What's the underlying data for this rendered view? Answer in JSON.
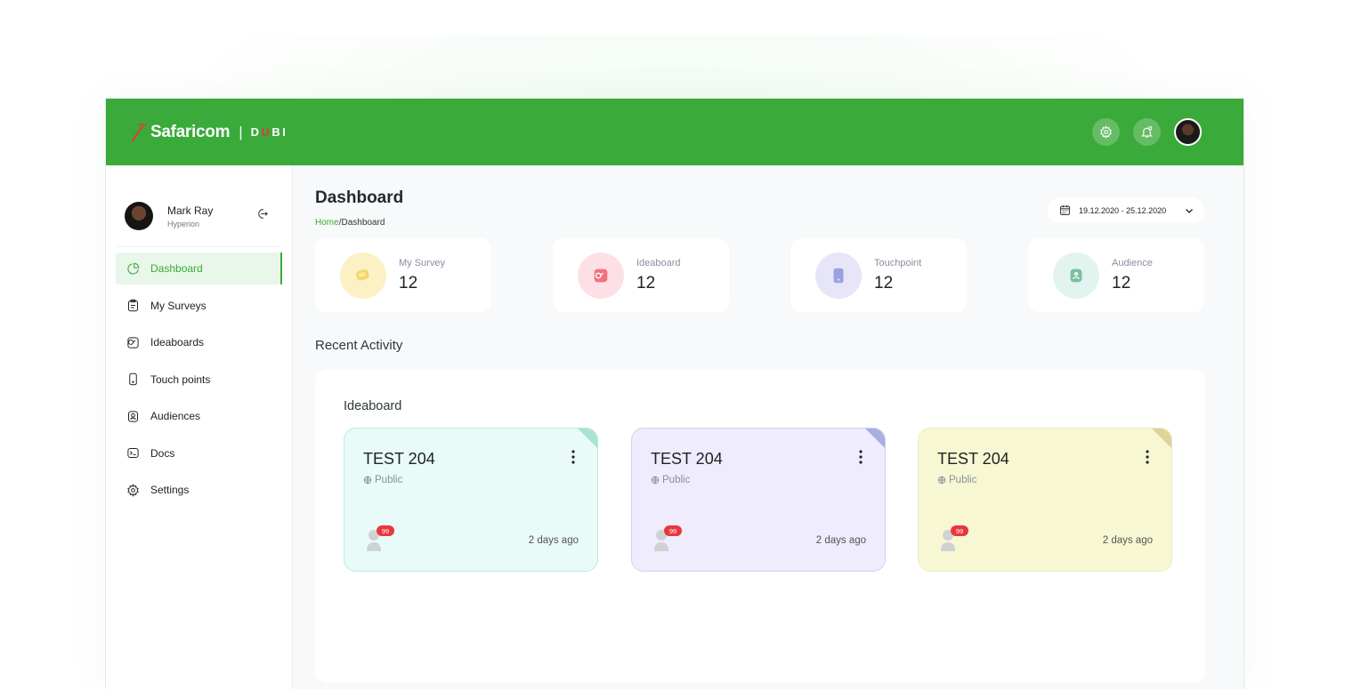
{
  "header": {
    "brand_name": "Safaricom",
    "separator": "|",
    "product_prefix": "D",
    "product_accent": "U",
    "product_suffix": "BI",
    "actions": [
      "settings-icon",
      "notification-icon",
      "user-avatar"
    ]
  },
  "profile": {
    "name": "Mark Ray",
    "org": "Hyperion"
  },
  "sidebar": {
    "items": [
      {
        "label": "Dashboard",
        "icon": "pie-chart-icon",
        "active": true
      },
      {
        "label": "My Surveys",
        "icon": "clipboard-icon",
        "active": false
      },
      {
        "label": "Ideaboards",
        "icon": "ideaboard-icon",
        "active": false
      },
      {
        "label": "Touch points",
        "icon": "phone-icon",
        "active": false
      },
      {
        "label": "Audiences",
        "icon": "audience-icon",
        "active": false
      },
      {
        "label": "Docs",
        "icon": "terminal-icon",
        "active": false
      },
      {
        "label": "Settings",
        "icon": "gear-icon",
        "active": false
      }
    ]
  },
  "page": {
    "title": "Dashboard",
    "breadcrumb_home": "Home",
    "breadcrumb_sep": "/",
    "breadcrumb_current": "Dashboard",
    "date_range": "19.12.2020 - 25.12.2020"
  },
  "stats": [
    {
      "label": "My Survey",
      "value": "12",
      "color": "#fbf1c4",
      "icon": "survey-icon"
    },
    {
      "label": "Ideaboard",
      "value": "12",
      "color": "#fde0e6",
      "icon": "ideaboard-icon"
    },
    {
      "label": "Touchpoint",
      "value": "12",
      "color": "#e6e6f8",
      "icon": "tablet-icon"
    },
    {
      "label": "Audience",
      "value": "12",
      "color": "#e2f4ef",
      "icon": "audience-icon"
    }
  ],
  "recent": {
    "title": "Recent Activity",
    "section": "Ideaboard",
    "cards": [
      {
        "title": "TEST 204",
        "visibility": "Public",
        "badge": "99",
        "time": "2 days ago",
        "bg": "#e8fbf8",
        "border": "#b7ebe2",
        "corner": "#a8e3d3"
      },
      {
        "title": "TEST 204",
        "visibility": "Public",
        "badge": "99",
        "time": "2 days ago",
        "bg": "#eeecfd",
        "border": "#d3d0f0",
        "corner": "#a9b0e0"
      },
      {
        "title": "TEST 204",
        "visibility": "Public",
        "badge": "99",
        "time": "2 days ago",
        "bg": "#f7f8d3",
        "border": "#ececc0",
        "corner": "#ddd49b"
      }
    ]
  }
}
